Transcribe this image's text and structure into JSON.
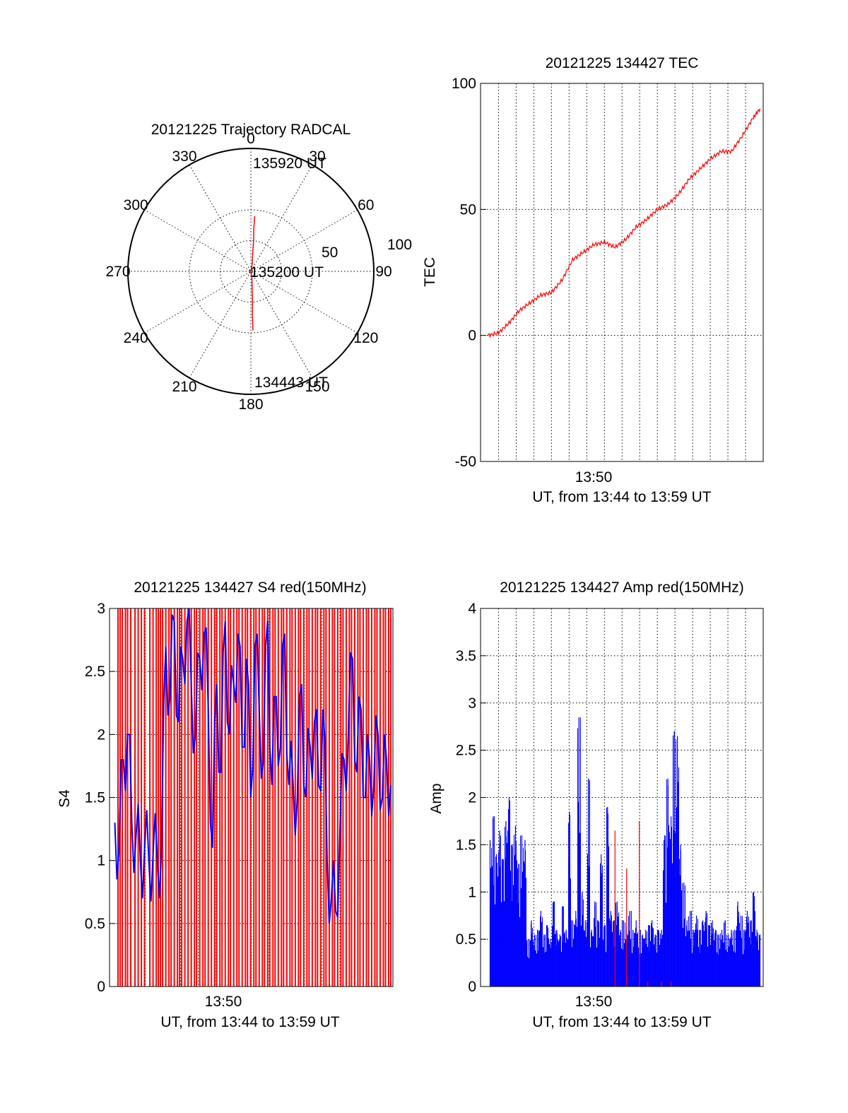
{
  "colors": {
    "red": "#ff0000",
    "blue": "#0000ff",
    "axis": "#000000",
    "background": "#ffffff"
  },
  "chart_data": [
    {
      "type": "polar",
      "title": "20121225 Trajectory RADCAL",
      "angle_labels": [
        "0",
        "30",
        "60",
        "90",
        "120",
        "150",
        "180",
        "210",
        "240",
        "270",
        "300",
        "330"
      ],
      "radius_labels": [
        "50",
        "100"
      ],
      "grid": true,
      "annotations": [
        {
          "text": "135920 UT",
          "angle": 4,
          "radius": 90
        },
        {
          "text": "135200 UT",
          "angle": 0,
          "radius": 0
        },
        {
          "text": "134443 UT",
          "angle": 178,
          "radius": 96
        }
      ],
      "series": [
        {
          "color": "red",
          "points": [
            {
              "angle": 4,
              "radius": 90
            },
            {
              "angle": 4,
              "radius": 70
            },
            {
              "angle": 5,
              "radius": 50
            },
            {
              "angle": 6,
              "radius": 30
            },
            {
              "angle": 10,
              "radius": 12
            },
            {
              "angle": 0,
              "radius": 0
            },
            {
              "angle": 172,
              "radius": 12
            },
            {
              "angle": 176,
              "radius": 30
            },
            {
              "angle": 177,
              "radius": 50
            },
            {
              "angle": 178,
              "radius": 70
            },
            {
              "angle": 178,
              "radius": 88
            },
            {
              "angle": 178,
              "radius": 96
            }
          ]
        }
      ]
    },
    {
      "type": "line",
      "title": "20121225 134427 TEC",
      "xlabel": "UT, from 13:44 to 13:59 UT",
      "ylabel": "TEC",
      "x_tick_labels": [
        "13:50"
      ],
      "y_ticks": [
        -50,
        0,
        50,
        100
      ],
      "xlim": [
        13.733,
        14.0
      ],
      "ylim": [
        -50,
        100
      ],
      "grid": true,
      "series": [
        {
          "color": "red",
          "x": [
            13.74,
            13.75,
            13.76,
            13.77,
            13.78,
            13.79,
            13.8,
            13.81,
            13.82,
            13.83,
            13.84,
            13.85,
            13.86,
            13.87,
            13.88,
            13.89,
            13.9,
            13.91,
            13.92,
            13.93,
            13.94,
            13.95,
            13.96,
            13.97,
            13.98,
            13.99,
            13.997
          ],
          "y": [
            0,
            1,
            5,
            10,
            13,
            16,
            17,
            22,
            30,
            33,
            36,
            37,
            35,
            38,
            43,
            46,
            50,
            52,
            56,
            62,
            66,
            70,
            73,
            73,
            79,
            86,
            90
          ]
        }
      ]
    },
    {
      "type": "bar",
      "title": "20121225 134427 S4 red(150MHz)",
      "xlabel": "UT, from 13:44 to 13:59 UT",
      "ylabel": "S4",
      "x_tick_labels": [
        "13:50"
      ],
      "y_ticks": [
        0,
        0.5,
        1,
        1.5,
        2,
        2.5,
        3
      ],
      "xlim": [
        13.733,
        14.0
      ],
      "ylim": [
        0,
        3
      ],
      "grid": true,
      "series": [
        {
          "name": "",
          "color": "red",
          "style": "vertical-lines",
          "x": [
            13.741,
            13.743,
            13.745,
            13.748,
            13.75,
            13.753,
            13.757,
            13.76,
            13.763,
            13.766,
            13.771,
            13.774,
            13.777,
            13.779,
            13.781,
            13.783,
            13.786,
            13.789,
            13.791,
            13.794,
            13.797,
            13.799,
            13.801,
            13.804,
            13.807,
            13.81,
            13.813,
            13.815,
            13.818,
            13.821,
            13.823,
            13.826,
            13.829,
            13.832,
            13.834,
            13.837,
            13.839,
            13.842,
            13.845,
            13.847,
            13.85,
            13.853,
            13.855,
            13.858,
            13.861,
            13.863,
            13.866,
            13.869,
            13.871,
            13.874,
            13.877,
            13.879,
            13.882,
            13.884,
            13.887,
            13.889,
            13.892,
            13.895,
            13.897,
            13.9,
            13.903,
            13.905,
            13.908,
            13.911,
            13.913,
            13.916,
            13.919,
            13.921,
            13.924,
            13.927,
            13.929,
            13.932,
            13.935,
            13.937,
            13.94,
            13.943,
            13.945,
            13.948,
            13.951,
            13.953,
            13.956,
            13.959,
            13.961,
            13.964,
            13.967,
            13.969,
            13.972,
            13.975,
            13.977,
            13.98,
            13.983,
            13.985,
            13.988,
            13.991,
            13.993,
            13.996,
            13.998
          ]
        },
        {
          "name": "",
          "color": "blue",
          "style": "line",
          "x": [
            13.738,
            13.742,
            13.746,
            13.75,
            13.754,
            13.758,
            13.762,
            13.766,
            13.77,
            13.774,
            13.778,
            13.782,
            13.786,
            13.79,
            13.794,
            13.798,
            13.802,
            13.806,
            13.81,
            13.814,
            13.818,
            13.822,
            13.826,
            13.83,
            13.834,
            13.838,
            13.842,
            13.846,
            13.85,
            13.854,
            13.858,
            13.862,
            13.866,
            13.87,
            13.874,
            13.878,
            13.882,
            13.886,
            13.89,
            13.894,
            13.898,
            13.902,
            13.906,
            13.91,
            13.914,
            13.918,
            13.922,
            13.926,
            13.93,
            13.934,
            13.938,
            13.942,
            13.946,
            13.95,
            13.954,
            13.958,
            13.962,
            13.966,
            13.97,
            13.974,
            13.978,
            13.982,
            13.986,
            13.99,
            13.994,
            13.998
          ],
          "y": [
            1.3,
            1.1,
            1.8,
            2.0,
            1.3,
            1.2,
            1.0,
            1.1,
            1.0,
            1.05,
            1.0,
            1.1,
            2.7,
            2.3,
            2.9,
            2.1,
            2.6,
            2.9,
            2.4,
            2.0,
            2.6,
            2.8,
            2.2,
            1.1,
            2.4,
            1.7,
            2.9,
            2.0,
            2.4,
            2.8,
            1.9,
            2.6,
            1.5,
            2.7,
            2.2,
            1.8,
            2.9,
            1.6,
            2.3,
            1.9,
            2.8,
            1.6,
            1.6,
            1.5,
            2.4,
            1.5,
            1.9,
            2.1,
            1.6,
            2.2,
            1.0,
            0.7,
            0.6,
            1.2,
            1.8,
            2.0,
            2.6,
            1.7,
            2.2,
            1.5,
            1.8,
            1.6,
            2.0,
            1.5,
            1.8,
            1.6
          ]
        }
      ]
    },
    {
      "type": "bar",
      "title": "20121225 134427 Amp red(150MHz)",
      "xlabel": "UT, from 13:44 to 13:59 UT",
      "ylabel": "Amp",
      "x_tick_labels": [
        "13:50"
      ],
      "y_ticks": [
        0,
        0.5,
        1,
        1.5,
        2,
        2.5,
        3,
        3.5,
        4
      ],
      "xlim": [
        13.733,
        14.0
      ],
      "ylim": [
        0,
        4
      ],
      "grid": true,
      "series": [
        {
          "name": "",
          "color": "blue",
          "x": [
            13.742,
            13.745,
            13.748,
            13.751,
            13.754,
            13.757,
            13.76,
            13.763,
            13.766,
            13.769,
            13.772,
            13.775,
            13.778,
            13.781,
            13.784,
            13.787,
            13.79,
            13.793,
            13.796,
            13.799,
            13.802,
            13.805,
            13.808,
            13.811,
            13.814,
            13.817,
            13.82,
            13.823,
            13.826,
            13.829,
            13.832,
            13.835,
            13.838,
            13.841,
            13.844,
            13.847,
            13.85,
            13.853,
            13.856,
            13.859,
            13.862,
            13.865,
            13.868,
            13.871,
            13.874,
            13.877,
            13.88,
            13.883,
            13.886,
            13.889,
            13.892,
            13.895,
            13.898,
            13.901,
            13.904,
            13.907,
            13.91,
            13.913,
            13.916,
            13.919,
            13.922,
            13.925,
            13.928,
            13.931,
            13.934,
            13.937,
            13.94,
            13.943,
            13.946,
            13.949,
            13.952,
            13.955,
            13.958,
            13.961,
            13.964,
            13.967,
            13.97,
            13.973,
            13.976,
            13.979,
            13.982,
            13.985,
            13.988,
            13.991,
            13.994,
            13.997
          ],
          "values": [
            1.55,
            1.8,
            1.4,
            1.65,
            1.35,
            1.75,
            2.0,
            1.5,
            1.7,
            1.3,
            1.6,
            1.55,
            0.5,
            0.7,
            0.55,
            0.6,
            0.8,
            0.55,
            0.65,
            0.5,
            0.9,
            0.6,
            0.55,
            0.85,
            0.6,
            1.85,
            0.7,
            0.8,
            2.85,
            1.0,
            0.7,
            2.2,
            0.6,
            0.9,
            0.7,
            1.4,
            0.65,
            1.9,
            0.8,
            0.7,
            0.9,
            0.6,
            0.7,
            0.65,
            0.8,
            0.6,
            0.7,
            0.6,
            0.55,
            0.6,
            0.65,
            0.7,
            0.55,
            0.6,
            0.6,
            1.6,
            2.2,
            1.8,
            2.7,
            2.65,
            1.5,
            1.1,
            0.7,
            0.8,
            0.6,
            0.75,
            0.6,
            0.7,
            0.8,
            0.65,
            0.7,
            0.6,
            0.55,
            0.6,
            0.7,
            0.55,
            0.6,
            0.6,
            0.9,
            0.75,
            0.6,
            0.8,
            0.7,
            1.0,
            0.6,
            0.55
          ]
        },
        {
          "name": "",
          "color": "red",
          "x": [
            13.86,
            13.871,
            13.883,
            13.891,
            13.904,
            13.913
          ],
          "values": [
            1.65,
            1.25,
            1.75,
            0.05,
            0.05,
            0.05
          ]
        }
      ]
    }
  ]
}
